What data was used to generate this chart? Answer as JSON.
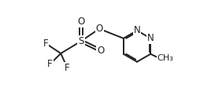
{
  "background": "#ffffff",
  "line_color": "#222222",
  "line_width": 1.4,
  "font_size": 8.5,
  "text_color": "#222222",
  "figsize": [
    2.54,
    1.12
  ],
  "dpi": 100,
  "xlim": [
    0.0,
    10.0
  ],
  "ylim": [
    1.5,
    7.5
  ]
}
